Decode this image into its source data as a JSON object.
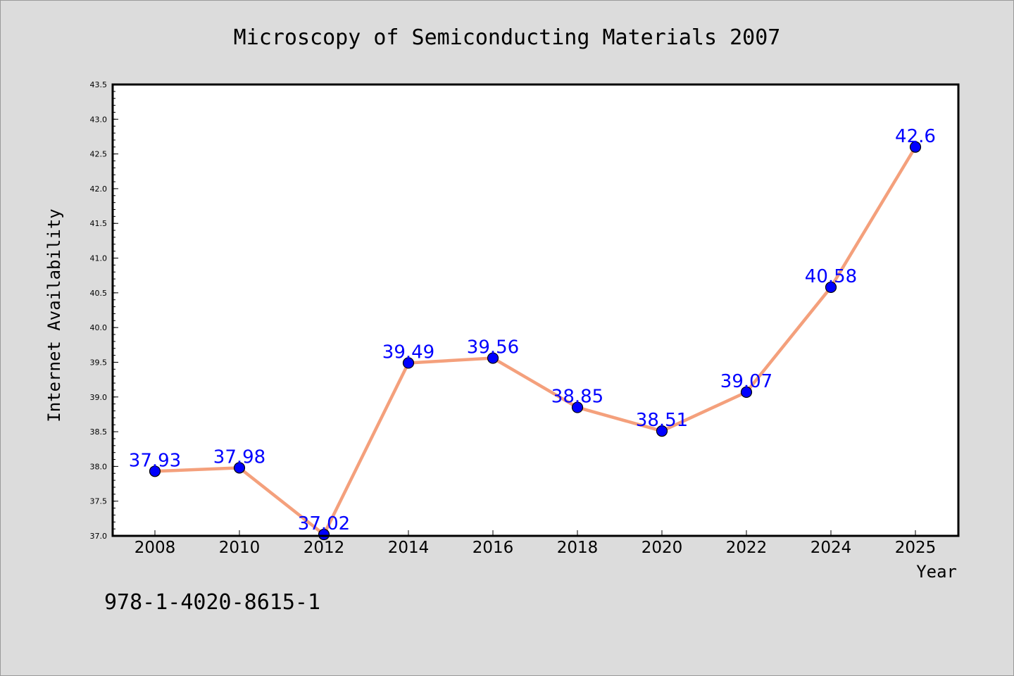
{
  "chart_data": {
    "type": "line",
    "title": "Microscopy of Semiconducting Materials 2007",
    "xlabel": "Year",
    "ylabel": "Internet Availability",
    "categories": [
      "2008",
      "2010",
      "2012",
      "2014",
      "2016",
      "2018",
      "2020",
      "2022",
      "2024",
      "2025"
    ],
    "series": [
      {
        "values": [
          37.93,
          37.98,
          37.02,
          39.49,
          39.56,
          38.85,
          38.51,
          39.07,
          40.58,
          42.6
        ],
        "data_labels": [
          "37.93",
          "37.98",
          "37.02",
          "39.49",
          "39.56",
          "38.85",
          "38.51",
          "39.07",
          "40.58",
          "42.6"
        ]
      }
    ],
    "ylim": [
      37.0,
      43.5
    ],
    "yticks": [
      "37.0",
      "37.5",
      "38.0",
      "38.5",
      "39.0",
      "39.5",
      "40.0",
      "40.5",
      "41.0",
      "41.5",
      "42.0",
      "42.5",
      "43.0",
      "43.5"
    ],
    "grid": false,
    "legend": "none",
    "colors": {
      "line": "#f4a07c",
      "marker": "#0000ff",
      "label": "#0000ff",
      "background": "#dcdcdc",
      "plot_background": "#ffffff"
    }
  },
  "footer": {
    "code": "978-1-4020-8615-1"
  }
}
